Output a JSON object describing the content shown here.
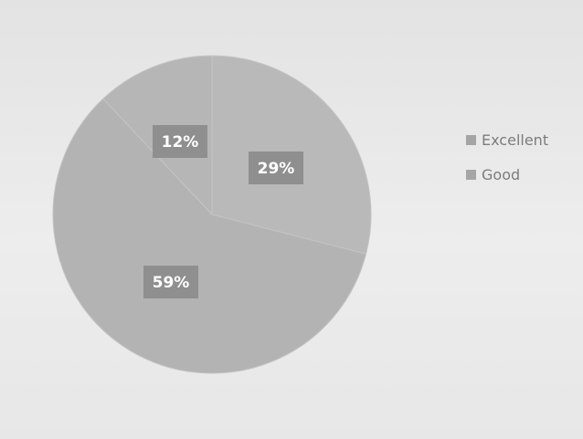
{
  "chart_data": {
    "type": "pie",
    "title": "",
    "slices": [
      {
        "name": "Excellent",
        "value": 29,
        "label": "29%",
        "color": "#b9b9b9"
      },
      {
        "name": "Good",
        "value": 59,
        "label": "59%",
        "color": "#b3b3b3"
      },
      {
        "name": "",
        "value": 12,
        "label": "12%",
        "color": "#b6b6b6"
      }
    ],
    "legend_position": "right",
    "legend": [
      {
        "name": "Excellent",
        "color": "#a5a5a5"
      },
      {
        "name": "Good",
        "color": "#a5a5a5"
      }
    ]
  }
}
